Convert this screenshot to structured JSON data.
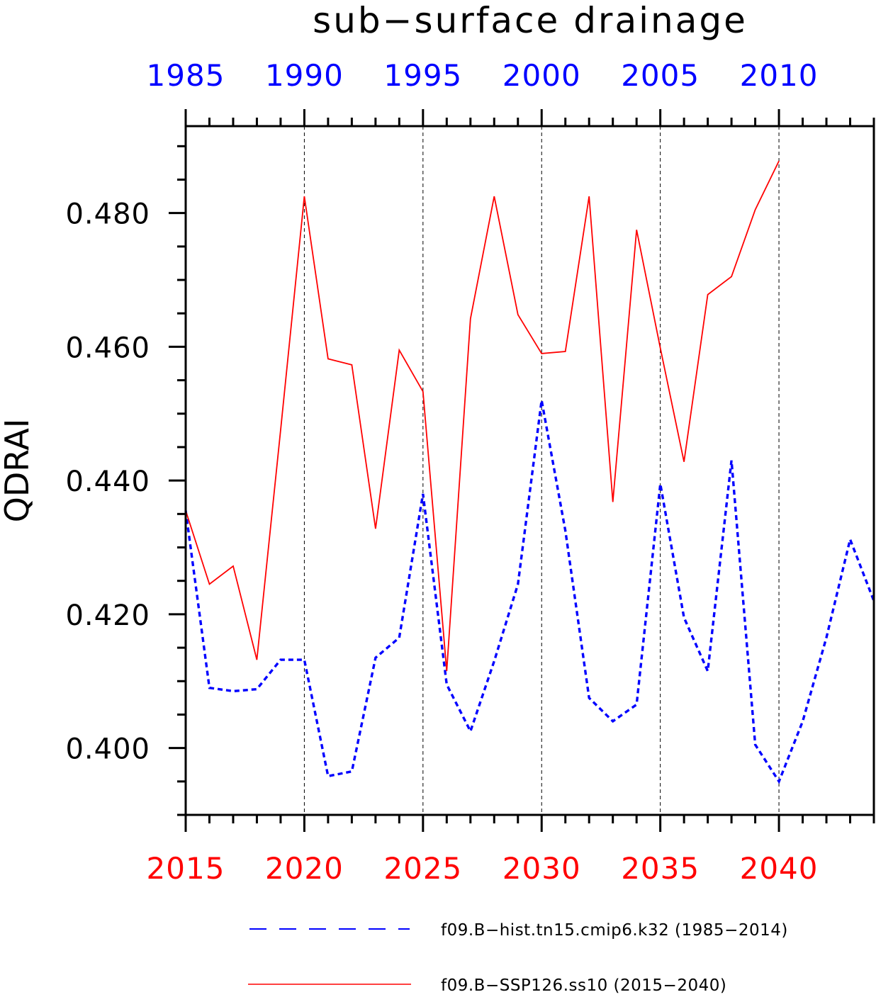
{
  "chart_data": {
    "type": "line",
    "title": "sub−surface drainage",
    "ylabel": "QDRAI",
    "ylim": [
      0.39,
      0.493
    ],
    "yticks": [
      "0.400",
      "0.420",
      "0.440",
      "0.460",
      "0.480"
    ],
    "x_bottom": {
      "range": [
        2015,
        2044
      ],
      "ticks": [
        "2015",
        "2020",
        "2025",
        "2030",
        "2035",
        "2040"
      ],
      "color": "#ff0000"
    },
    "x_top": {
      "range": [
        1985,
        2014
      ],
      "ticks": [
        "1985",
        "1990",
        "1995",
        "2000",
        "2005",
        "2010"
      ],
      "color": "#0000ff"
    },
    "grid": "vertical dashed at major ticks",
    "legend_position": "bottom",
    "series": [
      {
        "name": "f09.B−hist.tn15.cmip6.k32 (1985−2014)",
        "color": "#0000ff",
        "style": "dashed",
        "x": [
          1985,
          1986,
          1987,
          1988,
          1989,
          1990,
          1991,
          1992,
          1993,
          1994,
          1995,
          1996,
          1997,
          1998,
          1999,
          2000,
          2001,
          2002,
          2003,
          2004,
          2005,
          2006,
          2007,
          2008,
          2009,
          2010,
          2011,
          2012,
          2013,
          2014
        ],
        "values": [
          0.4355,
          0.409,
          0.4085,
          0.4088,
          0.4132,
          0.4132,
          0.3958,
          0.3965,
          0.4135,
          0.4165,
          0.438,
          0.4095,
          0.4025,
          0.413,
          0.4245,
          0.452,
          0.4325,
          0.4075,
          0.404,
          0.4065,
          0.4395,
          0.4195,
          0.4115,
          0.443,
          0.4005,
          0.395,
          0.404,
          0.4165,
          0.4312,
          0.422
        ]
      },
      {
        "name": "f09.B−SSP126.ss10 (2015−2040)",
        "color": "#ff0000",
        "style": "solid",
        "x": [
          2015,
          2016,
          2017,
          2018,
          2019,
          2020,
          2021,
          2022,
          2023,
          2024,
          2025,
          2026,
          2027,
          2028,
          2029,
          2030,
          2031,
          2032,
          2033,
          2034,
          2035,
          2036,
          2037,
          2038,
          2039,
          2040
        ],
        "values": [
          0.4355,
          0.4245,
          0.4272,
          0.4132,
          0.4475,
          0.4825,
          0.4582,
          0.4573,
          0.4328,
          0.4595,
          0.4533,
          0.4115,
          0.4642,
          0.4825,
          0.4648,
          0.459,
          0.4593,
          0.4825,
          0.4368,
          0.4775,
          0.4598,
          0.4428,
          0.4678,
          0.4705,
          0.4805,
          0.4878
        ]
      }
    ]
  }
}
